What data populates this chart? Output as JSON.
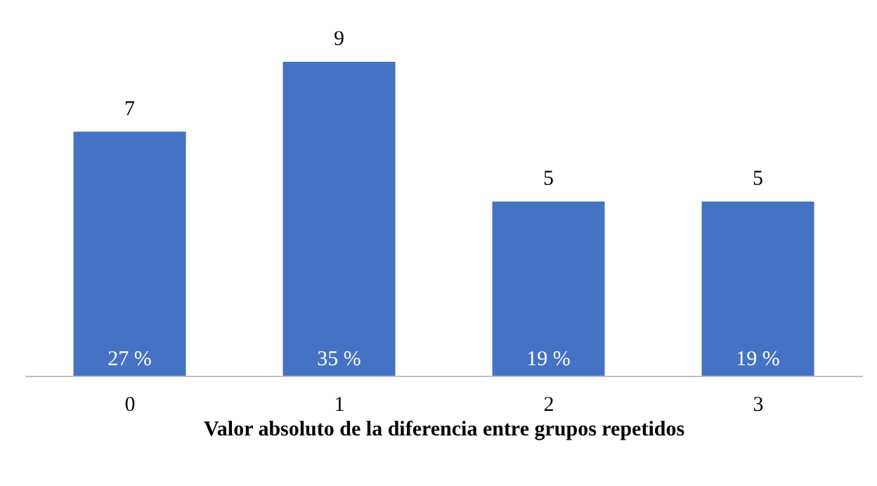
{
  "chart_data": {
    "type": "bar",
    "xlabel": "Valor absoluto de la diferencia entre grupos repetidos",
    "categories": [
      "0",
      "1",
      "2",
      "3"
    ],
    "values": [
      7,
      9,
      5,
      5
    ],
    "color": "#4472c4",
    "data_labels": true,
    "grid": false,
    "legend": false,
    "annotations": [
      "27 %",
      "35 %",
      "19 %",
      "19 %"
    ]
  }
}
